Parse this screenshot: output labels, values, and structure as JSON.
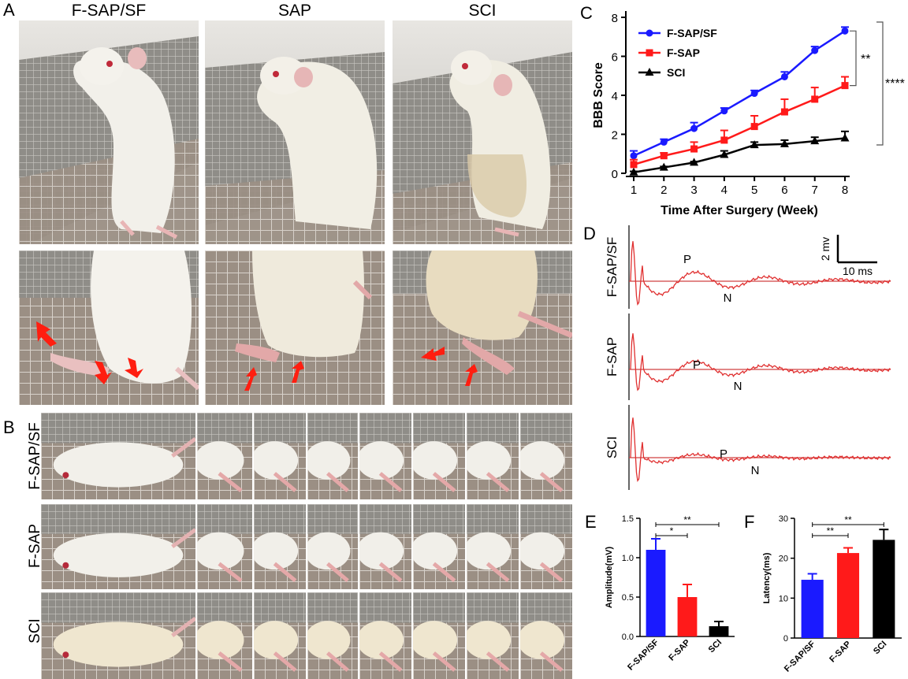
{
  "panel_labels": {
    "a": "A",
    "b": "B",
    "c": "C",
    "d": "D",
    "e": "E",
    "f": "F"
  },
  "panel_a": {
    "columns": [
      "F-SAP/SF",
      "SAP",
      "SCI"
    ]
  },
  "panel_b": {
    "rows": [
      "F-SAP/SF",
      "F-SAP",
      "SCI"
    ]
  },
  "panel_d": {
    "rows": [
      "F-SAP/SF",
      "F-SAP",
      "SCI"
    ],
    "peak_labels": {
      "p": "P",
      "n": "N"
    },
    "scale_v": "2 mv",
    "scale_t": "10 ms"
  },
  "colors": {
    "fsapsf": "#1a1aff",
    "fsap": "#ff1a1a",
    "sci": "#000000",
    "trace": "#e03030",
    "arrow": "#ff1e10"
  },
  "chart_data": [
    {
      "id": "C",
      "type": "line",
      "xlabel": "Time After Surgery (Week)",
      "ylabel": "BBB Score",
      "xlim": [
        1,
        8
      ],
      "ylim": [
        0,
        8
      ],
      "x": [
        1,
        2,
        3,
        4,
        5,
        6,
        7,
        8
      ],
      "xticks": [
        "1",
        "2",
        "3",
        "4",
        "5",
        "6",
        "7",
        "8"
      ],
      "yticks": [
        "0",
        "2",
        "4",
        "6",
        "8"
      ],
      "legend_position": "top-left",
      "series": [
        {
          "name": "F-SAP/SF",
          "color": "#1a1aff",
          "marker": "circle",
          "values": [
            0.9,
            1.6,
            2.3,
            3.2,
            4.1,
            4.95,
            6.3,
            7.3
          ],
          "err": [
            0.25,
            0.15,
            0.3,
            0.15,
            0.15,
            0.25,
            0.2,
            0.2
          ]
        },
        {
          "name": "F-SAP",
          "color": "#ff1a1a",
          "marker": "square",
          "values": [
            0.45,
            0.9,
            1.25,
            1.7,
            2.4,
            3.15,
            3.8,
            4.5
          ],
          "err": [
            0.25,
            0.15,
            0.35,
            0.5,
            0.55,
            0.65,
            0.6,
            0.45
          ]
        },
        {
          "name": "SCI",
          "color": "#000000",
          "marker": "triangle",
          "values": [
            0.05,
            0.3,
            0.55,
            0.95,
            1.45,
            1.5,
            1.65,
            1.8
          ],
          "err": [
            0.05,
            0.05,
            0.05,
            0.2,
            0.15,
            0.2,
            0.2,
            0.35
          ]
        }
      ],
      "significance": [
        "**",
        "****"
      ]
    },
    {
      "id": "E",
      "type": "bar",
      "ylabel": "Amplitude(mV)",
      "categories": [
        "F-SAP/SF",
        "F-SAP",
        "SCI"
      ],
      "values": [
        1.1,
        0.5,
        0.13
      ],
      "err": [
        0.14,
        0.16,
        0.06
      ],
      "colors": [
        "#1a1aff",
        "#ff1a1a",
        "#000000"
      ],
      "ylim": [
        0,
        1.5
      ],
      "yticks": [
        "0.0",
        "0.5",
        "1.0",
        "1.5"
      ],
      "significance": [
        "*",
        "**"
      ]
    },
    {
      "id": "F",
      "type": "bar",
      "ylabel": "Latency(ms)",
      "categories": [
        "F-SAP/SF",
        "F-SAP",
        "SCI"
      ],
      "values": [
        14.6,
        21.3,
        24.6
      ],
      "err": [
        1.5,
        1.3,
        2.6
      ],
      "colors": [
        "#1a1aff",
        "#ff1a1a",
        "#000000"
      ],
      "ylim": [
        0,
        30
      ],
      "yticks": [
        "0",
        "10",
        "20",
        "30"
      ],
      "significance": [
        "**",
        "**"
      ]
    }
  ]
}
